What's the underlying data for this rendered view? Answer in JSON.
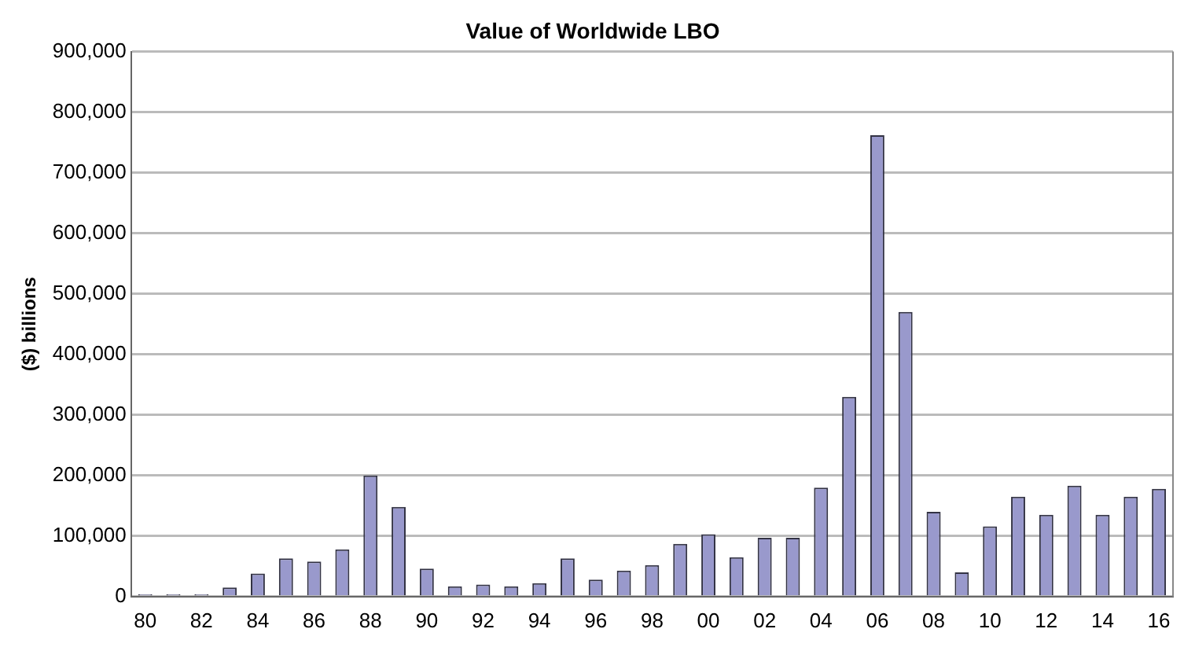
{
  "chart_data": {
    "type": "bar",
    "title": "Value of Worldwide LBO",
    "ylabel": "($) billions",
    "categories": [
      "80",
      null,
      "82",
      null,
      "84",
      null,
      "86",
      null,
      "88",
      null,
      "90",
      null,
      "92",
      null,
      "94",
      null,
      "96",
      null,
      "98",
      null,
      "00",
      null,
      "02",
      null,
      "04",
      null,
      "06",
      null,
      "08",
      null,
      "10",
      null,
      "12",
      null,
      "14",
      null,
      "16"
    ],
    "values": [
      4000,
      4000,
      4000,
      15000,
      38000,
      63000,
      58000,
      78000,
      200000,
      148000,
      46000,
      17000,
      20000,
      17000,
      22000,
      63000,
      28000,
      43000,
      52000,
      87000,
      103000,
      65000,
      97000,
      97000,
      180000,
      330000,
      762000,
      470000,
      140000,
      40000,
      116000,
      165000,
      135000,
      183000,
      135000,
      165000,
      178000
    ],
    "color": "#9999cc",
    "ylim": [
      0,
      900000
    ],
    "yticks": [
      0,
      {
        "value": 100000,
        "label": "100,000"
      },
      {
        "value": 200000,
        "label": "200,000"
      },
      {
        "value": 300000,
        "label": "300,000"
      },
      {
        "value": 400000,
        "label": "400,000"
      },
      {
        "value": 500000,
        "label": "500,000"
      },
      {
        "value": 600000,
        "label": "600,000"
      },
      {
        "value": 700000,
        "label": "700,000"
      },
      {
        "value": 800000,
        "label": "800,000"
      },
      {
        "value": 900000,
        "label": "900,000"
      }
    ],
    "grid": "y",
    "legend": false
  }
}
